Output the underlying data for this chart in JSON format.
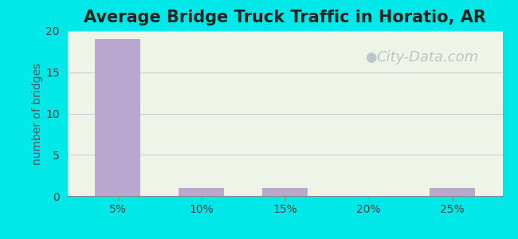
{
  "title": "Average Bridge Truck Traffic in Horatio, AR",
  "categories": [
    "5%",
    "10%",
    "15%",
    "20%",
    "25%"
  ],
  "values": [
    19,
    1,
    1,
    0,
    1
  ],
  "bar_color": "#b8a8d0",
  "ylabel": "number of bridges",
  "ylim": [
    0,
    20
  ],
  "yticks": [
    0,
    5,
    10,
    15,
    20
  ],
  "background_outer": "#00e8e8",
  "background_plot_top": "#eef5e8",
  "background_plot_bottom": "#f5faf0",
  "title_fontsize": 15,
  "label_fontsize": 10,
  "tick_fontsize": 10,
  "bar_width": 0.55,
  "watermark": "City-Data.com",
  "watermark_color": "#aab4bc",
  "watermark_fontsize": 13,
  "grid_color": "#d8c8d8",
  "ylabel_color": "#555555",
  "tick_color": "#444444",
  "title_color": "#222222"
}
